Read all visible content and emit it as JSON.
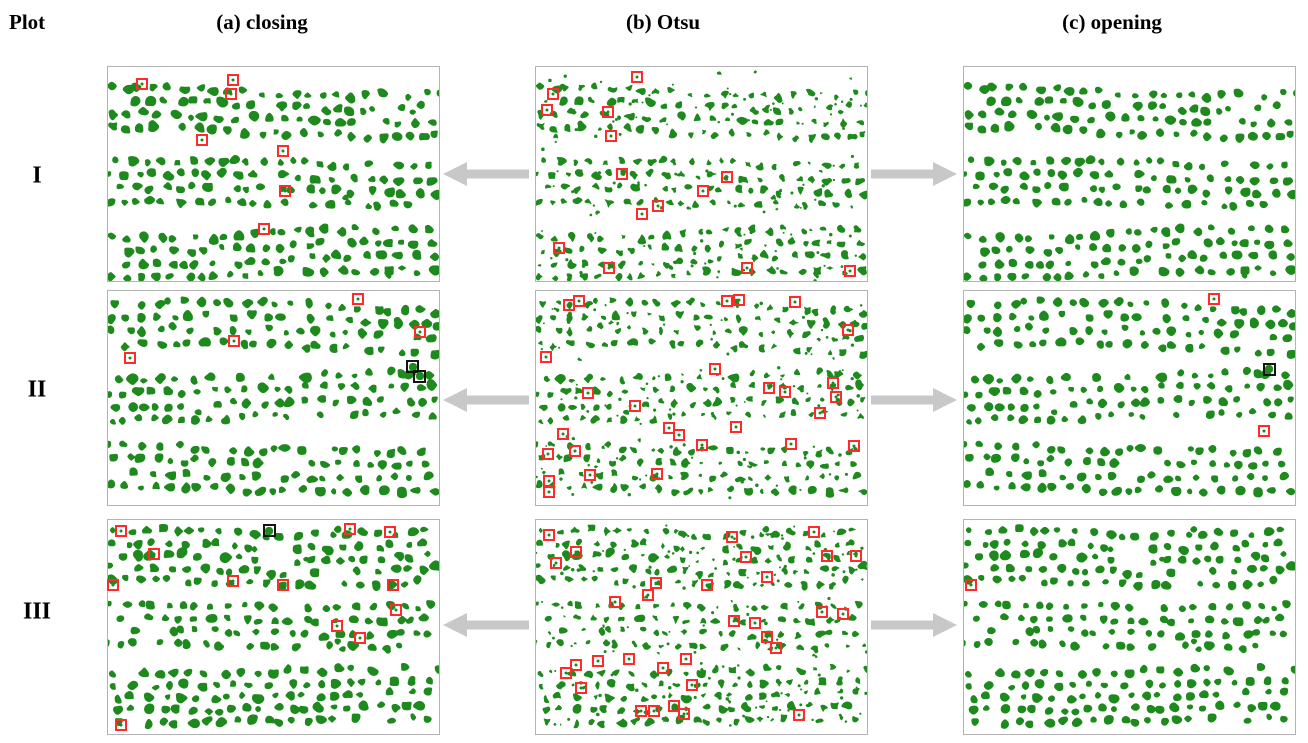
{
  "figure": {
    "plot_header": "Plot",
    "column_headers": [
      "(a) closing",
      "(b) Otsu",
      "(c) opening"
    ],
    "row_labels": [
      "I",
      "II",
      "III"
    ]
  },
  "colors": {
    "vegetation_green": "#1e8a1e",
    "marker_red": "#ff2a2a",
    "marker_black": "#141414",
    "arrow_gray": "#c8c8c8",
    "panel_border": "#b3b3b3",
    "text": "#000000"
  },
  "texture": {
    "column_styles": {
      "a": {
        "r_scale": 1.06,
        "irregularity": 0.9,
        "min_r": 2.9,
        "satellites": false
      },
      "b": {
        "r_scale": 0.85,
        "irregularity": 1.6,
        "min_r": 0.0,
        "satellites": true
      },
      "c": {
        "r_scale": 1.02,
        "irregularity": 0.55,
        "min_r": 3.05,
        "satellites": false
      }
    }
  },
  "rows": [
    {
      "label": "I",
      "texture": {
        "seed": 113,
        "strays": 14,
        "bands": [
          {
            "y": 0.115,
            "rows": 4,
            "gap": 0.062
          },
          {
            "y": 0.45,
            "rows": 4,
            "gap": 0.063
          },
          {
            "y": 0.78,
            "rows": 4,
            "gap": 0.063
          }
        ]
      },
      "panels": {
        "a": {
          "red_squares": [
            [
              0.103,
              0.079
            ],
            [
              0.378,
              0.06
            ],
            [
              0.372,
              0.126
            ],
            [
              0.283,
              0.341
            ],
            [
              0.528,
              0.391
            ],
            [
              0.534,
              0.58
            ],
            [
              0.471,
              0.759
            ]
          ],
          "black_squares": []
        },
        "b": {
          "red_squares": [
            [
              0.306,
              0.047
            ],
            [
              0.051,
              0.126
            ],
            [
              0.033,
              0.2
            ],
            [
              0.216,
              0.212
            ],
            [
              0.225,
              0.321
            ],
            [
              0.261,
              0.498
            ],
            [
              0.577,
              0.516
            ],
            [
              0.504,
              0.581
            ],
            [
              0.369,
              0.649
            ],
            [
              0.321,
              0.688
            ],
            [
              0.069,
              0.846
            ],
            [
              0.219,
              0.94
            ],
            [
              0.636,
              0.938
            ],
            [
              0.949,
              0.953
            ]
          ],
          "black_squares": []
        },
        "c": {
          "red_squares": [],
          "black_squares": []
        }
      }
    },
    {
      "label": "II",
      "texture": {
        "seed": 229,
        "strays": 14,
        "bands": [
          {
            "y": 0.075,
            "rows": 4,
            "gap": 0.063
          },
          {
            "y": 0.4,
            "rows": 4,
            "gap": 0.063
          },
          {
            "y": 0.735,
            "rows": 4,
            "gap": 0.063
          }
        ]
      },
      "panels": {
        "a": {
          "red_squares": [
            [
              0.755,
              0.038
            ],
            [
              0.942,
              0.191
            ],
            [
              0.38,
              0.233
            ],
            [
              0.066,
              0.311
            ]
          ],
          "black_squares": [
            [
              0.92,
              0.354
            ],
            [
              0.942,
              0.398
            ]
          ]
        },
        "b": {
          "red_squares": [
            [
              0.1,
              0.066
            ],
            [
              0.131,
              0.047
            ],
            [
              0.578,
              0.047
            ],
            [
              0.614,
              0.042
            ],
            [
              0.781,
              0.052
            ],
            [
              0.943,
              0.183
            ],
            [
              0.031,
              0.306
            ],
            [
              0.54,
              0.366
            ],
            [
              0.157,
              0.475
            ],
            [
              0.703,
              0.451
            ],
            [
              0.751,
              0.474
            ],
            [
              0.898,
              0.431
            ],
            [
              0.907,
              0.496
            ],
            [
              0.298,
              0.536
            ],
            [
              0.859,
              0.568
            ],
            [
              0.402,
              0.639
            ],
            [
              0.432,
              0.672
            ],
            [
              0.604,
              0.634
            ],
            [
              0.081,
              0.67
            ],
            [
              0.502,
              0.719
            ],
            [
              0.77,
              0.713
            ],
            [
              0.961,
              0.723
            ],
            [
              0.036,
              0.761
            ],
            [
              0.118,
              0.747
            ],
            [
              0.162,
              0.858
            ],
            [
              0.365,
              0.854
            ],
            [
              0.038,
              0.887
            ],
            [
              0.038,
              0.938
            ]
          ],
          "black_squares": []
        },
        "c": {
          "red_squares": [
            [
              0.754,
              0.038
            ],
            [
              0.907,
              0.652
            ]
          ],
          "black_squares": [
            [
              0.922,
              0.366
            ]
          ]
        }
      }
    },
    {
      "label": "III",
      "texture": {
        "seed": 331,
        "strays": 16,
        "bands": [
          {
            "y": 0.06,
            "rows": 5,
            "gap": 0.058
          },
          {
            "y": 0.4,
            "rows": 4,
            "gap": 0.062
          },
          {
            "y": 0.705,
            "rows": 5,
            "gap": 0.058
          }
        ]
      },
      "panels": {
        "a": {
          "red_squares": [
            [
              0.039,
              0.051
            ],
            [
              0.731,
              0.042
            ],
            [
              0.852,
              0.056
            ],
            [
              0.139,
              0.159
            ],
            [
              0.015,
              0.304
            ],
            [
              0.378,
              0.285
            ],
            [
              0.529,
              0.304
            ],
            [
              0.861,
              0.304
            ],
            [
              0.87,
              0.421
            ],
            [
              0.692,
              0.495
            ],
            [
              0.761,
              0.551
            ],
            [
              0.039,
              0.958
            ]
          ],
          "black_squares": [
            [
              0.487,
              0.051
            ]
          ]
        },
        "b": {
          "red_squares": [
            [
              0.039,
              0.07
            ],
            [
              0.591,
              0.079
            ],
            [
              0.841,
              0.056
            ],
            [
              0.12,
              0.15
            ],
            [
              0.06,
              0.201
            ],
            [
              0.634,
              0.173
            ],
            [
              0.88,
              0.17
            ],
            [
              0.967,
              0.17
            ],
            [
              0.697,
              0.266
            ],
            [
              0.363,
              0.296
            ],
            [
              0.516,
              0.304
            ],
            [
              0.339,
              0.35
            ],
            [
              0.24,
              0.383
            ],
            [
              0.598,
              0.474
            ],
            [
              0.661,
              0.481
            ],
            [
              0.863,
              0.432
            ],
            [
              0.926,
              0.437
            ],
            [
              0.697,
              0.545
            ],
            [
              0.724,
              0.6
            ],
            [
              0.187,
              0.658
            ],
            [
              0.28,
              0.649
            ],
            [
              0.454,
              0.649
            ],
            [
              0.385,
              0.692
            ],
            [
              0.12,
              0.677
            ],
            [
              0.09,
              0.716
            ],
            [
              0.472,
              0.771
            ],
            [
              0.135,
              0.785
            ],
            [
              0.316,
              0.892
            ],
            [
              0.355,
              0.892
            ],
            [
              0.418,
              0.869
            ],
            [
              0.448,
              0.907
            ],
            [
              0.793,
              0.911
            ]
          ],
          "black_squares": []
        },
        "c": {
          "red_squares": [
            [
              0.021,
              0.304
            ]
          ],
          "black_squares": []
        }
      }
    }
  ]
}
